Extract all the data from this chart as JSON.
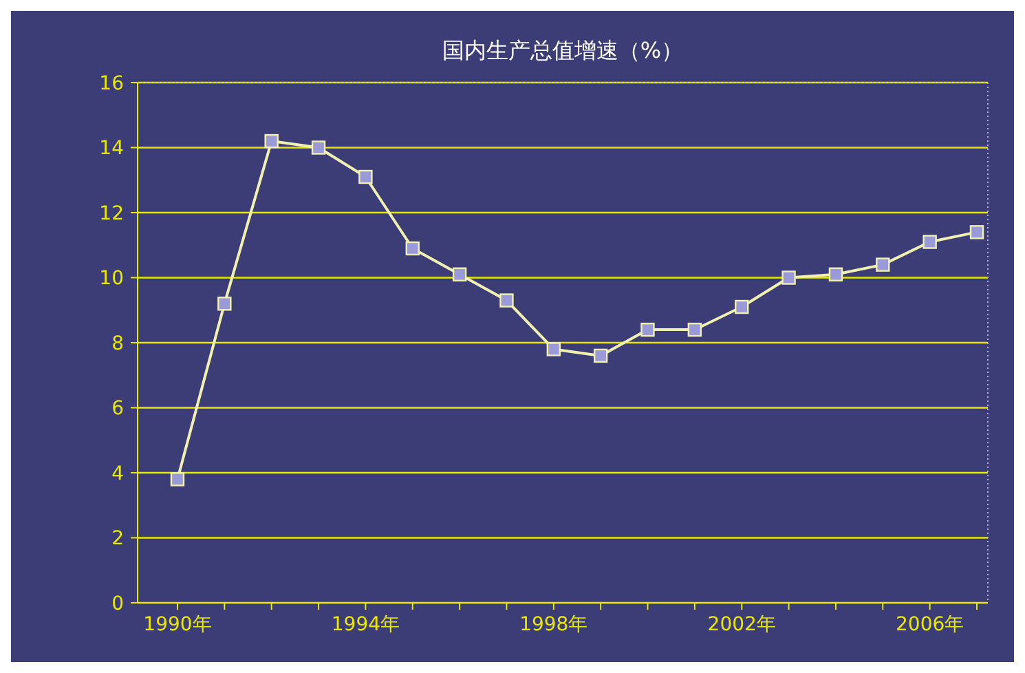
{
  "chart_data": {
    "type": "line",
    "title": "国内生产总值增速（%）",
    "categories": [
      "1990年",
      null,
      null,
      null,
      "1994年",
      null,
      null,
      null,
      "1998年",
      null,
      null,
      null,
      "2002年",
      null,
      null,
      null,
      "2006年",
      null
    ],
    "series": [
      {
        "color": "#f0f0b0",
        "values": [
          3.8,
          9.2,
          14.2,
          14.0,
          13.1,
          10.9,
          10.1,
          9.3,
          7.8,
          7.6,
          8.4,
          8.4,
          9.1,
          10.0,
          10.1,
          10.4,
          11.1,
          11.4
        ]
      }
    ],
    "ylim": [
      0,
      16
    ],
    "yticks": [
      0,
      2,
      4,
      6,
      8,
      10,
      12,
      14,
      16
    ],
    "grid": "y",
    "marker": "square",
    "line_style": "solid"
  }
}
